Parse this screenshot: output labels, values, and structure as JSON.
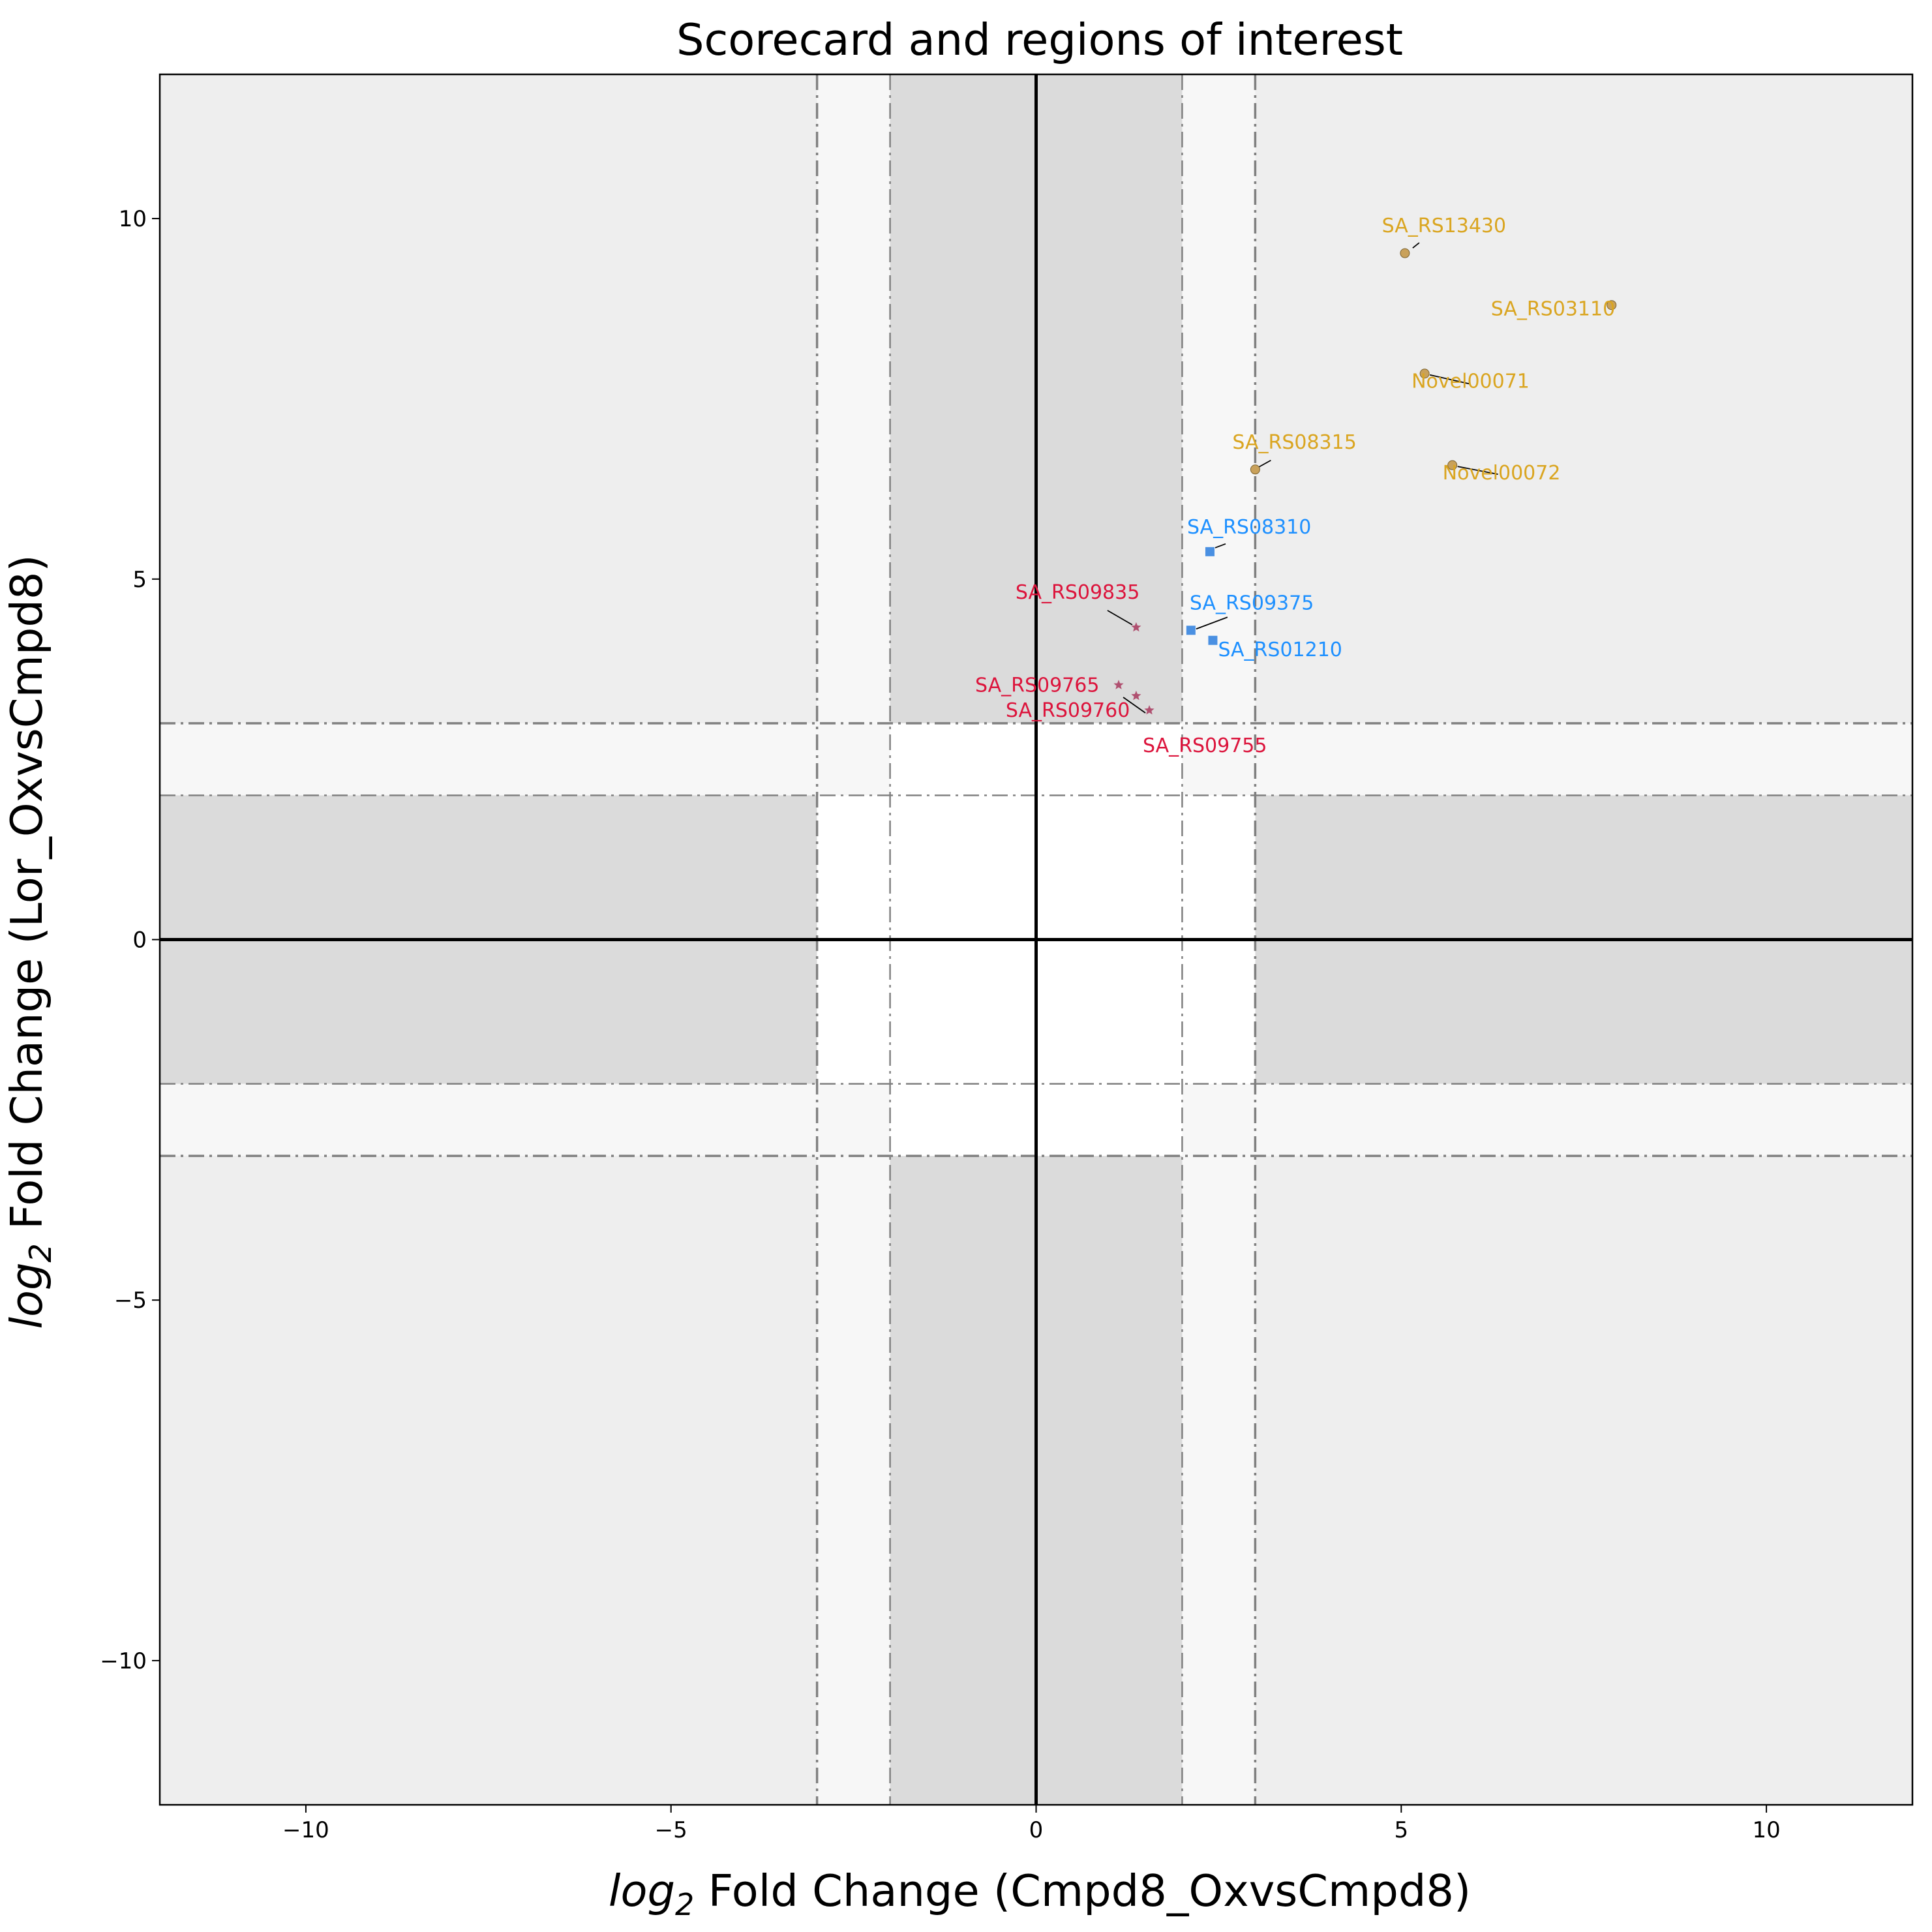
{
  "chart_data": {
    "type": "scatter",
    "title": "Scorecard and regions of interest",
    "xlabel_italic": "log",
    "xlabel_sub": "2",
    "xlabel_rest": " Fold Change (Cmpd8_OxvsCmpd8)",
    "ylabel_italic": "log",
    "ylabel_sub": "2",
    "ylabel_rest": " Fold Change (Lor_OxvsCmpd8)",
    "xlim": [
      -12,
      12
    ],
    "ylim": [
      -12,
      12
    ],
    "xticks": [
      -10,
      -5,
      0,
      5,
      10
    ],
    "yticks": [
      -10,
      -5,
      0,
      5,
      10
    ],
    "xtick_labels": [
      "−10",
      "−5",
      "0",
      "5",
      "10"
    ],
    "ytick_labels": [
      "−10",
      "−5",
      "0",
      "5",
      "10"
    ],
    "thresholds": {
      "inner": 2,
      "outer": 3
    },
    "colors": {
      "region_dark": "#dbdbdb",
      "region_light": "#eeeeee",
      "region_lighter": "#f7f7f7",
      "threshold_line": "#808080",
      "zero_line": "#000000",
      "group_gold": "#daa520",
      "group_gold_marker": "#c9a15a",
      "group_blue": "#1e90ff",
      "group_blue_marker": "#4a90e2",
      "group_red": "#dc143c",
      "group_red_marker": "#b05070"
    },
    "series": [
      {
        "marker": "circle",
        "color_key": "group_gold",
        "points": [
          {
            "label": "SA_RS13430",
            "x": 5.05,
            "y": 9.52
          },
          {
            "label": "SA_RS03110",
            "x": 7.88,
            "y": 8.8
          },
          {
            "label": "Novel00071",
            "x": 5.32,
            "y": 7.85
          },
          {
            "label": "SA_RS08315",
            "x": 3.0,
            "y": 6.52
          },
          {
            "label": "Novel00072",
            "x": 5.7,
            "y": 6.58
          }
        ]
      },
      {
        "marker": "square",
        "color_key": "group_blue",
        "points": [
          {
            "label": "SA_RS08310",
            "x": 2.38,
            "y": 5.38
          },
          {
            "label": "SA_RS09375",
            "x": 2.12,
            "y": 4.29
          },
          {
            "label": "SA_RS01210",
            "x": 2.42,
            "y": 4.15
          }
        ]
      },
      {
        "marker": "star",
        "color_key": "group_red",
        "points": [
          {
            "label": "SA_RS09835",
            "x": 1.37,
            "y": 4.33
          },
          {
            "label": "SA_RS09765",
            "x": 1.13,
            "y": 3.53
          },
          {
            "label": "SA_RS09760",
            "x": 1.37,
            "y": 3.38
          },
          {
            "label": "SA_RS09755",
            "x": 1.55,
            "y": 3.18
          }
        ]
      }
    ]
  }
}
